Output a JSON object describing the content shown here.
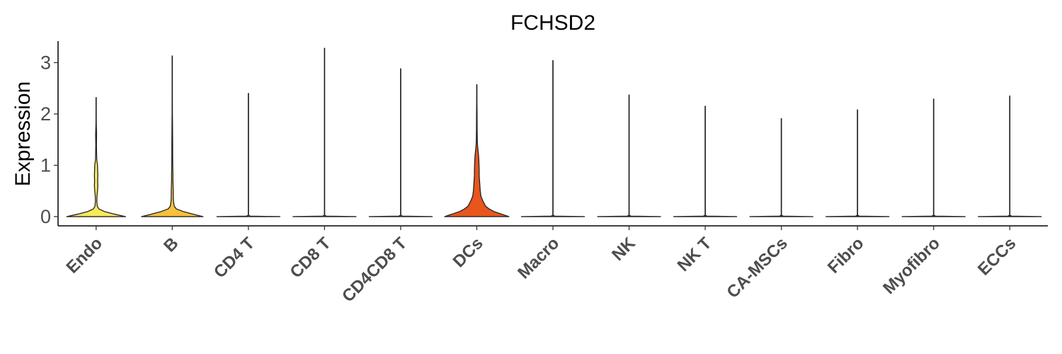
{
  "chart_data": {
    "type": "violin",
    "title": "FCHSD2",
    "xlabel": "",
    "ylabel": "Expression",
    "ylim": [
      -0.18,
      3.42
    ],
    "yticks": [
      0,
      1,
      2,
      3
    ],
    "grid": false,
    "legend": "none",
    "categories": [
      "Endo",
      "B",
      "CD4 T",
      "CD8 T",
      "CD4CD8 T",
      "DCs",
      "Macro",
      "NK",
      "NK T",
      "CA-MSCs",
      "Fibro",
      "Myofibro",
      "ECCs"
    ],
    "series": [
      {
        "category": "Endo",
        "color": "#f9ea5a",
        "max": 2.32,
        "profile": [
          [
            0,
            0.86
          ],
          [
            0.05,
            0.52
          ],
          [
            0.1,
            0.24
          ],
          [
            0.15,
            0.08
          ],
          [
            0.2,
            0.035
          ],
          [
            0.3,
            0.02
          ],
          [
            0.4,
            0.025
          ],
          [
            0.5,
            0.04
          ],
          [
            0.6,
            0.05
          ],
          [
            0.7,
            0.045
          ],
          [
            0.8,
            0.05
          ],
          [
            0.9,
            0.045
          ],
          [
            1.0,
            0.04
          ],
          [
            1.1,
            0.02
          ],
          [
            1.2,
            0.015
          ],
          [
            1.3,
            0.012
          ],
          [
            1.4,
            0.01
          ],
          [
            1.5,
            0.012
          ],
          [
            1.6,
            0.014
          ],
          [
            1.7,
            0.01
          ],
          [
            1.8,
            0.005
          ],
          [
            2.0,
            0.003
          ],
          [
            2.32,
            0.002
          ]
        ]
      },
      {
        "category": "B",
        "color": "#f7c13a",
        "max": 3.13,
        "profile": [
          [
            0,
            0.9
          ],
          [
            0.05,
            0.6
          ],
          [
            0.1,
            0.32
          ],
          [
            0.15,
            0.12
          ],
          [
            0.2,
            0.06
          ],
          [
            0.3,
            0.035
          ],
          [
            0.4,
            0.03
          ],
          [
            0.5,
            0.03
          ],
          [
            0.6,
            0.025
          ],
          [
            0.7,
            0.02
          ],
          [
            0.8,
            0.02
          ],
          [
            1.0,
            0.015
          ],
          [
            1.2,
            0.012
          ],
          [
            1.4,
            0.012
          ],
          [
            1.6,
            0.01
          ],
          [
            1.8,
            0.008
          ],
          [
            2.0,
            0.005
          ],
          [
            2.3,
            0.003
          ],
          [
            2.7,
            0.002
          ],
          [
            3.13,
            0.002
          ]
        ]
      },
      {
        "category": "CD4 T",
        "color": "#f7a22c",
        "max": 2.4,
        "profile": [
          [
            0,
            0.92
          ],
          [
            0.01,
            0.05
          ],
          [
            0.03,
            0.003
          ],
          [
            2.4,
            0.002
          ]
        ]
      },
      {
        "category": "CD8 T",
        "color": "#f5912a",
        "max": 3.28,
        "profile": [
          [
            0,
            0.92
          ],
          [
            0.01,
            0.05
          ],
          [
            0.03,
            0.003
          ],
          [
            3.28,
            0.002
          ]
        ]
      },
      {
        "category": "CD4CD8 T",
        "color": "#f08028",
        "max": 2.88,
        "profile": [
          [
            0,
            0.92
          ],
          [
            0.01,
            0.05
          ],
          [
            0.03,
            0.003
          ],
          [
            2.88,
            0.002
          ]
        ]
      },
      {
        "category": "DCs",
        "color": "#e8561e",
        "max": 2.57,
        "profile": [
          [
            0,
            0.94
          ],
          [
            0.05,
            0.72
          ],
          [
            0.1,
            0.5
          ],
          [
            0.15,
            0.36
          ],
          [
            0.2,
            0.26
          ],
          [
            0.3,
            0.18
          ],
          [
            0.4,
            0.12
          ],
          [
            0.5,
            0.1
          ],
          [
            0.6,
            0.09
          ],
          [
            0.7,
            0.08
          ],
          [
            0.8,
            0.07
          ],
          [
            0.9,
            0.07
          ],
          [
            1.0,
            0.065
          ],
          [
            1.1,
            0.06
          ],
          [
            1.2,
            0.05
          ],
          [
            1.3,
            0.035
          ],
          [
            1.4,
            0.02
          ],
          [
            1.5,
            0.015
          ],
          [
            1.7,
            0.01
          ],
          [
            2.0,
            0.008
          ],
          [
            2.2,
            0.005
          ],
          [
            2.57,
            0.002
          ]
        ]
      },
      {
        "category": "Macro",
        "color": "#e04a1c",
        "max": 3.04,
        "profile": [
          [
            0,
            0.92
          ],
          [
            0.01,
            0.05
          ],
          [
            0.03,
            0.003
          ],
          [
            3.04,
            0.002
          ]
        ]
      },
      {
        "category": "NK",
        "color": "#d8441a",
        "max": 2.37,
        "profile": [
          [
            0,
            0.92
          ],
          [
            0.01,
            0.05
          ],
          [
            0.03,
            0.003
          ],
          [
            2.37,
            0.002
          ]
        ]
      },
      {
        "category": "NK T",
        "color": "#d03e18",
        "max": 2.15,
        "profile": [
          [
            0,
            0.92
          ],
          [
            0.01,
            0.05
          ],
          [
            0.03,
            0.003
          ],
          [
            2.15,
            0.002
          ]
        ]
      },
      {
        "category": "CA-MSCs",
        "color": "#c83816",
        "max": 1.91,
        "profile": [
          [
            0,
            0.92
          ],
          [
            0.01,
            0.05
          ],
          [
            0.03,
            0.003
          ],
          [
            1.91,
            0.002
          ]
        ]
      },
      {
        "category": "Fibro",
        "color": "#c03214",
        "max": 2.08,
        "profile": [
          [
            0,
            0.92
          ],
          [
            0.01,
            0.05
          ],
          [
            0.03,
            0.003
          ],
          [
            2.08,
            0.002
          ]
        ]
      },
      {
        "category": "Myofibro",
        "color": "#b82c12",
        "max": 2.29,
        "profile": [
          [
            0,
            0.92
          ],
          [
            0.01,
            0.05
          ],
          [
            0.03,
            0.003
          ],
          [
            2.29,
            0.002
          ]
        ]
      },
      {
        "category": "ECCs",
        "color": "#b02610",
        "max": 2.35,
        "profile": [
          [
            0,
            0.92
          ],
          [
            0.01,
            0.05
          ],
          [
            0.03,
            0.003
          ],
          [
            2.35,
            0.002
          ]
        ]
      }
    ]
  }
}
